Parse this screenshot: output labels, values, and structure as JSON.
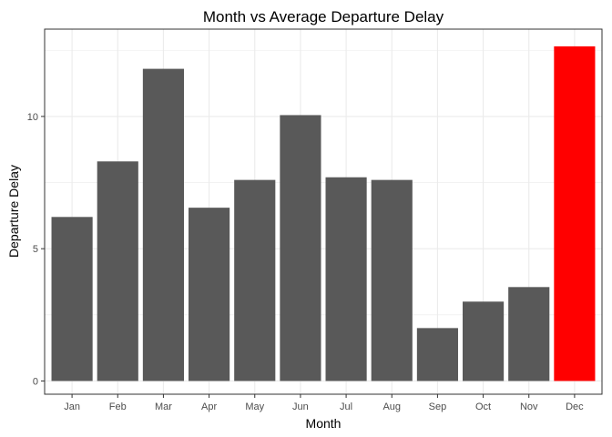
{
  "chart_data": {
    "type": "bar",
    "title": "Month vs Average Departure Delay",
    "xlabel": "Month",
    "ylabel": "Departure Delay",
    "categories": [
      "Jan",
      "Feb",
      "Mar",
      "Apr",
      "May",
      "Jun",
      "Jul",
      "Aug",
      "Sep",
      "Oct",
      "Nov",
      "Dec"
    ],
    "values": [
      6.2,
      8.3,
      11.8,
      6.55,
      7.6,
      10.05,
      7.7,
      7.6,
      2.0,
      3.0,
      3.55,
      12.65
    ],
    "ylim": [
      -0.5,
      13.3
    ],
    "yticks": [
      0,
      5,
      10
    ],
    "grid": true,
    "legend": "none",
    "colors": {
      "default_bar": "#595959",
      "highlight_bar": "#ff0000",
      "panel_border": "#333333",
      "grid": "#ebebeb"
    },
    "highlight_category": "Dec"
  }
}
